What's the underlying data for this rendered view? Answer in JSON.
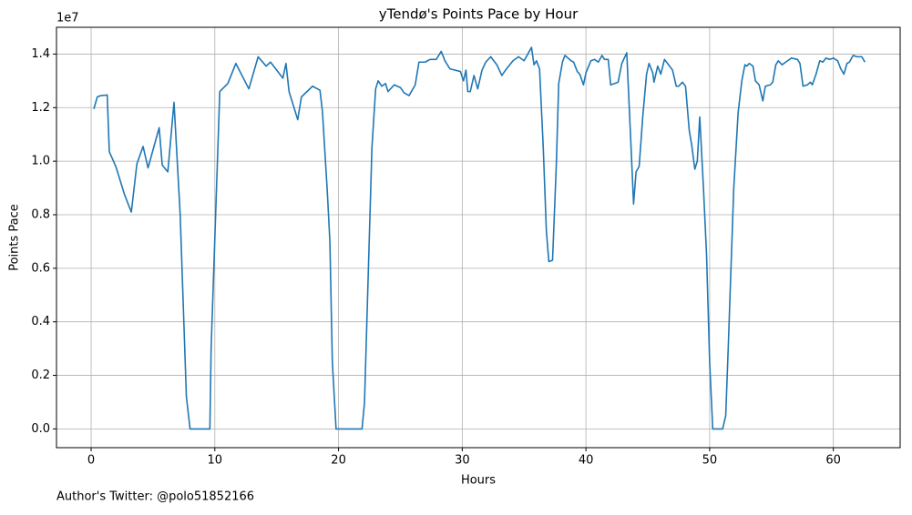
{
  "chart_data": {
    "type": "line",
    "title": "yTendø's Points Pace by Hour",
    "x_label": "Hours",
    "y_label": "Points Pace",
    "y_offset_label": "1e7",
    "footnote": "Author's Twitter: @polo51852166",
    "grid": true,
    "xlim": [
      -2.8,
      65.4
    ],
    "xticks": [
      0,
      10,
      20,
      30,
      40,
      50,
      60
    ],
    "ylim": [
      -0.07,
      1.5
    ],
    "yticks": [
      {
        "value": 0,
        "label": "0.0"
      },
      {
        "value": 0.2,
        "label": "0.2"
      },
      {
        "value": 0.4,
        "label": "0.4"
      },
      {
        "value": 0.6,
        "label": "0.6"
      },
      {
        "value": 0.8,
        "label": "0.8"
      },
      {
        "value": 1,
        "label": "1.0"
      },
      {
        "value": 1.2,
        "label": "1.2"
      },
      {
        "value": 1.4,
        "label": "1.4"
      }
    ],
    "x": [
      0.22,
      0.5,
      0.8,
      1.3,
      1.47,
      2.0,
      2.7,
      3.25,
      3.7,
      4.2,
      4.6,
      5.5,
      5.75,
      6.2,
      6.7,
      7.2,
      7.7,
      8.0,
      9.6,
      9.7,
      10.4,
      11.05,
      11.7,
      12.75,
      13.5,
      14.15,
      14.5,
      15.5,
      15.75,
      16.0,
      16.7,
      17.0,
      17.9,
      18.5,
      18.7,
      19.1,
      19.3,
      19.5,
      19.8,
      21.9,
      22.1,
      22.7,
      23.0,
      23.2,
      23.5,
      23.8,
      24.0,
      24.5,
      25.0,
      25.3,
      25.7,
      26.2,
      26.5,
      27.0,
      27.4,
      27.9,
      28.3,
      28.6,
      29.0,
      29.85,
      30.1,
      30.3,
      30.45,
      30.65,
      30.95,
      31.25,
      31.6,
      31.9,
      32.3,
      32.8,
      33.2,
      33.5,
      34.1,
      34.55,
      35.0,
      35.6,
      35.8,
      36.0,
      36.25,
      36.55,
      36.8,
      37.0,
      37.3,
      37.6,
      37.8,
      38.1,
      38.3,
      38.8,
      39.0,
      39.3,
      39.5,
      39.8,
      40.0,
      40.4,
      40.7,
      41.0,
      41.3,
      41.5,
      41.8,
      42.0,
      42.6,
      42.9,
      43.3,
      43.6,
      43.85,
      44.05,
      44.3,
      44.6,
      44.9,
      45.1,
      45.4,
      45.5,
      45.8,
      46.05,
      46.35,
      46.6,
      47.0,
      47.3,
      47.5,
      47.8,
      48.05,
      48.35,
      48.55,
      48.8,
      49.0,
      49.2,
      49.5,
      49.75,
      50.0,
      50.25,
      51.05,
      51.3,
      51.5,
      51.95,
      52.3,
      52.6,
      52.85,
      53.0,
      53.2,
      53.5,
      53.7,
      54.0,
      54.3,
      54.5,
      54.9,
      55.1,
      55.35,
      55.55,
      55.85,
      56.15,
      56.6,
      57.1,
      57.3,
      57.55,
      57.9,
      58.15,
      58.3,
      58.6,
      58.9,
      59.15,
      59.4,
      59.7,
      60.0,
      60.35,
      60.6,
      60.85,
      61.1,
      61.3,
      61.6,
      61.9,
      62.3,
      62.55
    ],
    "series": [
      {
        "name": "Points Pace",
        "color": "#1f77b4",
        "values": [
          1.195,
          1.24,
          1.245,
          1.247,
          1.035,
          0.98,
          0.875,
          0.81,
          0.99,
          1.055,
          0.975,
          1.125,
          0.985,
          0.96,
          1.22,
          0.8,
          0.12,
          0,
          0,
          0.3,
          1.26,
          1.29,
          1.365,
          1.27,
          1.39,
          1.355,
          1.37,
          1.31,
          1.365,
          1.26,
          1.155,
          1.24,
          1.28,
          1.265,
          1.185,
          0.88,
          0.7,
          0.25,
          0,
          0,
          0.1,
          1.05,
          1.27,
          1.3,
          1.28,
          1.29,
          1.26,
          1.285,
          1.275,
          1.255,
          1.245,
          1.285,
          1.37,
          1.37,
          1.38,
          1.38,
          1.41,
          1.375,
          1.345,
          1.335,
          1.3,
          1.34,
          1.26,
          1.26,
          1.32,
          1.27,
          1.34,
          1.37,
          1.39,
          1.36,
          1.32,
          1.34,
          1.375,
          1.39,
          1.375,
          1.425,
          1.36,
          1.375,
          1.345,
          1.05,
          0.74,
          0.625,
          0.63,
          0.98,
          1.29,
          1.37,
          1.395,
          1.375,
          1.37,
          1.335,
          1.325,
          1.285,
          1.33,
          1.375,
          1.38,
          1.37,
          1.395,
          1.38,
          1.38,
          1.285,
          1.295,
          1.365,
          1.405,
          1.1,
          0.84,
          0.96,
          0.98,
          1.17,
          1.325,
          1.365,
          1.33,
          1.295,
          1.355,
          1.325,
          1.38,
          1.365,
          1.34,
          1.28,
          1.28,
          1.295,
          1.28,
          1.115,
          1.06,
          0.97,
          1.0,
          1.165,
          0.9,
          0.65,
          0.25,
          0,
          0,
          0.05,
          0.3,
          0.9,
          1.18,
          1.3,
          1.36,
          1.355,
          1.365,
          1.355,
          1.3,
          1.285,
          1.225,
          1.28,
          1.285,
          1.295,
          1.36,
          1.375,
          1.36,
          1.37,
          1.385,
          1.38,
          1.365,
          1.28,
          1.285,
          1.295,
          1.285,
          1.325,
          1.375,
          1.37,
          1.385,
          1.38,
          1.385,
          1.375,
          1.345,
          1.325,
          1.365,
          1.37,
          1.395,
          1.39,
          1.39,
          1.37
        ]
      }
    ]
  }
}
